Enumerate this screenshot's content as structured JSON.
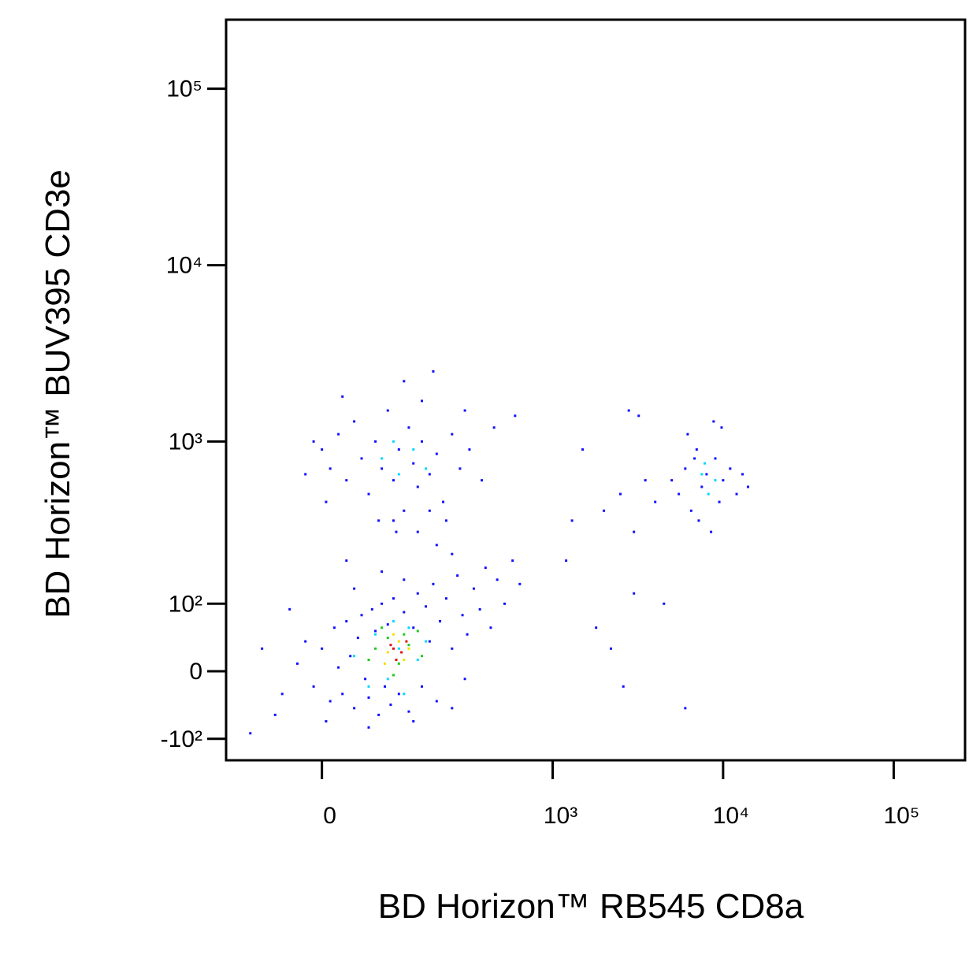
{
  "chart_data": {
    "type": "scatter",
    "x_label": "BD Horizon™ RB545 CD8a",
    "y_label": "BD Horizon™   BUV395 CD3e",
    "xscale": "biexponential",
    "yscale": "biexponential",
    "xlim": [
      -150,
      262000
    ],
    "ylim": [
      -144,
      246000
    ],
    "xticks": [
      0,
      {
        "value": 1000,
        "label": "10³"
      },
      {
        "value": 10000,
        "label": "10⁴"
      },
      {
        "value": 100000,
        "label": "10⁵"
      }
    ],
    "yticks": [
      {
        "value": -100,
        "label": "-10²"
      },
      0,
      {
        "value": 100,
        "label": "10²"
      },
      {
        "value": 1000,
        "label": "10³"
      },
      {
        "value": 10000,
        "label": "10⁴"
      },
      {
        "value": 100000,
        "label": "10⁵"
      }
    ],
    "series": [
      {
        "color": "#1010ff",
        "x": [
          -30,
          -20,
          -10,
          0,
          10,
          15,
          20,
          25,
          30,
          35,
          40,
          45,
          50,
          55,
          60,
          65,
          70,
          75,
          80,
          85,
          90,
          95,
          100,
          110,
          120,
          130,
          140,
          150,
          160,
          170,
          180,
          190,
          200,
          210,
          230,
          250,
          270,
          290,
          310,
          340,
          370,
          400,
          430,
          470,
          520,
          580,
          640,
          -60,
          -80,
          -100,
          5,
          60,
          140,
          250,
          300,
          120,
          80,
          40,
          30,
          200,
          150,
          100,
          180,
          250,
          -40,
          -50,
          0,
          10,
          20,
          30,
          40,
          50,
          60,
          70,
          80,
          90,
          100,
          110,
          120,
          130,
          140,
          150,
          160,
          180,
          200,
          220,
          250,
          280,
          320,
          380,
          450,
          -10,
          -20,
          25,
          120,
          160,
          190,
          5,
          75,
          105,
          230,
          300,
          600,
          5500,
          6000,
          6500,
          7000,
          7500,
          8000,
          8500,
          9000,
          9500,
          10000,
          11000,
          12000,
          13000,
          6200,
          8800,
          7200,
          5000,
          14000,
          9800,
          6800,
          2000,
          2500,
          3000,
          3500,
          4000,
          1500,
          2800,
          3200,
          1800,
          2200,
          2600,
          3000,
          4500,
          6000,
          1200,
          1300
        ],
        "y": [
          10,
          40,
          -20,
          30,
          -40,
          60,
          5,
          -30,
          70,
          20,
          -50,
          45,
          80,
          -10,
          -35,
          90,
          55,
          -60,
          100,
          -20,
          65,
          -45,
          110,
          -30,
          85,
          -55,
          60,
          120,
          -20,
          95,
          40,
          140,
          -40,
          70,
          110,
          30,
          160,
          80,
          50,
          130,
          90,
          180,
          60,
          150,
          100,
          200,
          140,
          -60,
          30,
          -90,
          -70,
          -80,
          -70,
          -50,
          -10,
          150,
          170,
          130,
          200,
          250,
          300,
          350,
          400,
          220,
          90,
          -30,
          900,
          700,
          1100,
          600,
          1300,
          800,
          500,
          1000,
          700,
          1500,
          600,
          900,
          400,
          1200,
          750,
          550,
          1000,
          650,
          850,
          450,
          1100,
          700,
          900,
          600,
          1200,
          1000,
          650,
          1800,
          2200,
          1700,
          2500,
          450,
          350,
          300,
          350,
          1500,
          1400,
          500,
          700,
          400,
          900,
          550,
          650,
          300,
          800,
          450,
          600,
          700,
          500,
          650,
          1100,
          1300,
          350,
          600,
          550,
          1200,
          800,
          400,
          500,
          300,
          600,
          450,
          900,
          1500,
          1400,
          60,
          30,
          -20,
          120,
          100,
          -50,
          200,
          350
        ]
      },
      {
        "color": "#00d8ff",
        "x": [
          40,
          70,
          90,
          110,
          130,
          150,
          60,
          170,
          100,
          120,
          80,
          110,
          140,
          100,
          170,
          7500,
          8200,
          7800,
          9000
        ],
        "y": [
          20,
          50,
          -10,
          30,
          60,
          15,
          -20,
          40,
          70,
          -30,
          800,
          650,
          900,
          1000,
          700,
          650,
          500,
          750,
          600
        ]
      },
      {
        "color": "#20c820",
        "x": [
          70,
          90,
          110,
          130,
          150,
          100,
          80,
          120,
          160,
          60
        ],
        "y": [
          30,
          45,
          10,
          35,
          55,
          -5,
          60,
          50,
          20,
          15
        ]
      },
      {
        "color": "#f0e000",
        "x": [
          90,
          110,
          120,
          100,
          130,
          85
        ],
        "y": [
          25,
          40,
          15,
          50,
          30,
          10
        ]
      },
      {
        "color": "#e01010",
        "x": [
          100,
          115,
          105,
          125,
          95
        ],
        "y": [
          30,
          25,
          15,
          40,
          35
        ]
      }
    ]
  }
}
